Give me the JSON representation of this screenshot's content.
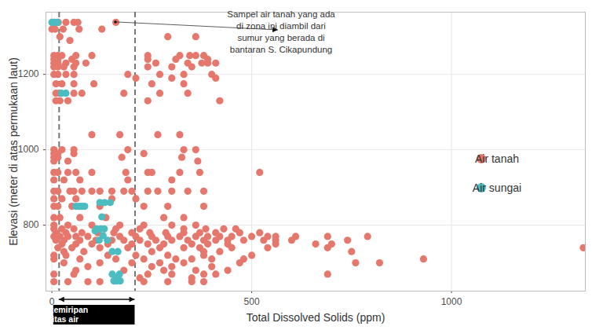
{
  "chart_data": {
    "type": "scatter",
    "x_label": "Total Dissolved Solids (ppm)",
    "y_label": "Elevasi (meter di atas permukaan laut)",
    "xlim": [
      -15,
      1335
    ],
    "ylim": [
      625,
      1365
    ],
    "xticks": [
      0,
      500,
      1000
    ],
    "yticks": [
      800,
      1000,
      1200
    ],
    "grid": true,
    "legend": "right",
    "marker": "circle",
    "series": [
      {
        "name": "Air tanah",
        "color": "#e5776c",
        "values": [
          [
            6,
            1338
          ],
          [
            16,
            1338
          ],
          [
            35,
            1338
          ],
          [
            55,
            1338
          ],
          [
            65,
            1338
          ],
          [
            160,
            1338
          ],
          [
            0,
            1320
          ],
          [
            8,
            1320
          ],
          [
            28,
            1320
          ],
          [
            68,
            1320
          ],
          [
            125,
            1320
          ],
          [
            20,
            1300
          ],
          [
            290,
            1300
          ],
          [
            360,
            1300
          ],
          [
            45,
            1290
          ],
          [
            5,
            1250
          ],
          [
            15,
            1250
          ],
          [
            25,
            1250
          ],
          [
            60,
            1250
          ],
          [
            100,
            1250
          ],
          [
            240,
            1250
          ],
          [
            320,
            1250
          ],
          [
            345,
            1250
          ],
          [
            360,
            1250
          ],
          [
            380,
            1250
          ],
          [
            5,
            1240
          ],
          [
            15,
            1240
          ],
          [
            50,
            1240
          ],
          [
            240,
            1240
          ],
          [
            310,
            1240
          ],
          [
            390,
            1240
          ],
          [
            5,
            1230
          ],
          [
            15,
            1230
          ],
          [
            35,
            1230
          ],
          [
            60,
            1230
          ],
          [
            85,
            1230
          ],
          [
            260,
            1230
          ],
          [
            340,
            1230
          ],
          [
            375,
            1230
          ],
          [
            390,
            1230
          ],
          [
            410,
            1230
          ],
          [
            5,
            1220
          ],
          [
            15,
            1220
          ],
          [
            30,
            1220
          ],
          [
            55,
            1220
          ],
          [
            240,
            1220
          ],
          [
            300,
            1220
          ],
          [
            350,
            1220
          ],
          [
            5,
            1200
          ],
          [
            15,
            1200
          ],
          [
            35,
            1200
          ],
          [
            55,
            1200
          ],
          [
            190,
            1200
          ],
          [
            270,
            1200
          ],
          [
            330,
            1200
          ],
          [
            400,
            1200
          ],
          [
            210,
            1190
          ],
          [
            300,
            1190
          ],
          [
            410,
            1190
          ],
          [
            10,
            1175
          ],
          [
            25,
            1175
          ],
          [
            55,
            1175
          ],
          [
            105,
            1175
          ],
          [
            250,
            1175
          ],
          [
            330,
            1175
          ],
          [
            10,
            1150
          ],
          [
            20,
            1150
          ],
          [
            55,
            1150
          ],
          [
            75,
            1150
          ],
          [
            180,
            1150
          ],
          [
            270,
            1150
          ],
          [
            340,
            1150
          ],
          [
            10,
            1130
          ],
          [
            20,
            1130
          ],
          [
            40,
            1130
          ],
          [
            240,
            1130
          ],
          [
            420,
            1130
          ],
          [
            100,
            1040
          ],
          [
            170,
            1040
          ],
          [
            265,
            1040
          ],
          [
            320,
            1040
          ],
          [
            5,
            1000
          ],
          [
            25,
            1000
          ],
          [
            55,
            1000
          ],
          [
            190,
            1000
          ],
          [
            330,
            1000
          ],
          [
            360,
            1000
          ],
          [
            5,
            990
          ],
          [
            15,
            990
          ],
          [
            55,
            990
          ],
          [
            230,
            990
          ],
          [
            5,
            980
          ],
          [
            15,
            980
          ],
          [
            175,
            980
          ],
          [
            325,
            980
          ],
          [
            5,
            970
          ],
          [
            40,
            970
          ],
          [
            365,
            970
          ],
          [
            5,
            940
          ],
          [
            15,
            940
          ],
          [
            40,
            940
          ],
          [
            60,
            940
          ],
          [
            100,
            940
          ],
          [
            185,
            940
          ],
          [
            240,
            940
          ],
          [
            250,
            940
          ],
          [
            320,
            940
          ],
          [
            370,
            940
          ],
          [
            520,
            940
          ],
          [
            5,
            920
          ],
          [
            30,
            920
          ],
          [
            70,
            920
          ],
          [
            190,
            920
          ],
          [
            300,
            920
          ],
          [
            5,
            890
          ],
          [
            15,
            890
          ],
          [
            45,
            890
          ],
          [
            55,
            890
          ],
          [
            75,
            890
          ],
          [
            100,
            890
          ],
          [
            120,
            890
          ],
          [
            150,
            890
          ],
          [
            180,
            890
          ],
          [
            200,
            890
          ],
          [
            240,
            890
          ],
          [
            265,
            890
          ],
          [
            300,
            890
          ],
          [
            340,
            890
          ],
          [
            380,
            890
          ],
          [
            5,
            870
          ],
          [
            25,
            870
          ],
          [
            60,
            870
          ],
          [
            150,
            870
          ],
          [
            210,
            870
          ],
          [
            5,
            850
          ],
          [
            15,
            850
          ],
          [
            50,
            850
          ],
          [
            120,
            850
          ],
          [
            230,
            850
          ],
          [
            290,
            850
          ],
          [
            380,
            850
          ],
          [
            5,
            820
          ],
          [
            20,
            820
          ],
          [
            70,
            820
          ],
          [
            135,
            820
          ],
          [
            280,
            820
          ],
          [
            330,
            820
          ],
          [
            5,
            800
          ],
          [
            40,
            800
          ],
          [
            100,
            800
          ],
          [
            170,
            800
          ],
          [
            230,
            800
          ],
          [
            300,
            800
          ],
          [
            360,
            800
          ],
          [
            5,
            790
          ],
          [
            25,
            790
          ],
          [
            55,
            790
          ],
          [
            160,
            790
          ],
          [
            220,
            790
          ],
          [
            330,
            790
          ],
          [
            385,
            790
          ],
          [
            430,
            790
          ],
          [
            460,
            790
          ],
          [
            10,
            780
          ],
          [
            35,
            780
          ],
          [
            75,
            780
          ],
          [
            115,
            780
          ],
          [
            155,
            780
          ],
          [
            200,
            780
          ],
          [
            245,
            780
          ],
          [
            285,
            780
          ],
          [
            330,
            780
          ],
          [
            370,
            780
          ],
          [
            410,
            780
          ],
          [
            470,
            780
          ],
          [
            520,
            780
          ],
          [
            5,
            770
          ],
          [
            20,
            770
          ],
          [
            40,
            770
          ],
          [
            60,
            770
          ],
          [
            90,
            770
          ],
          [
            170,
            770
          ],
          [
            210,
            770
          ],
          [
            250,
            770
          ],
          [
            290,
            770
          ],
          [
            320,
            770
          ],
          [
            360,
            770
          ],
          [
            390,
            770
          ],
          [
            420,
            770
          ],
          [
            450,
            770
          ],
          [
            500,
            770
          ],
          [
            540,
            770
          ],
          [
            560,
            770
          ],
          [
            610,
            770
          ],
          [
            690,
            770
          ],
          [
            790,
            770
          ],
          [
            10,
            760
          ],
          [
            30,
            760
          ],
          [
            70,
            760
          ],
          [
            110,
            760
          ],
          [
            150,
            760
          ],
          [
            180,
            760
          ],
          [
            220,
            760
          ],
          [
            260,
            760
          ],
          [
            300,
            760
          ],
          [
            340,
            760
          ],
          [
            380,
            760
          ],
          [
            410,
            760
          ],
          [
            440,
            760
          ],
          [
            480,
            760
          ],
          [
            530,
            760
          ],
          [
            560,
            760
          ],
          [
            600,
            760
          ],
          [
            740,
            760
          ],
          [
            25,
            750
          ],
          [
            60,
            750
          ],
          [
            100,
            750
          ],
          [
            140,
            750
          ],
          [
            200,
            750
          ],
          [
            240,
            750
          ],
          [
            280,
            750
          ],
          [
            350,
            750
          ],
          [
            390,
            750
          ],
          [
            440,
            750
          ],
          [
            560,
            750
          ],
          [
            660,
            750
          ],
          [
            700,
            750
          ],
          [
            15,
            740
          ],
          [
            50,
            740
          ],
          [
            120,
            740
          ],
          [
            190,
            740
          ],
          [
            270,
            740
          ],
          [
            330,
            740
          ],
          [
            370,
            740
          ],
          [
            450,
            740
          ],
          [
            540,
            740
          ],
          [
            690,
            740
          ],
          [
            1330,
            740
          ],
          [
            30,
            730
          ],
          [
            80,
            730
          ],
          [
            250,
            730
          ],
          [
            380,
            730
          ],
          [
            420,
            730
          ],
          [
            750,
            730
          ],
          [
            5,
            720
          ],
          [
            35,
            720
          ],
          [
            140,
            720
          ],
          [
            210,
            720
          ],
          [
            290,
            720
          ],
          [
            380,
            720
          ],
          [
            500,
            720
          ],
          [
            5,
            710
          ],
          [
            70,
            710
          ],
          [
            160,
            710
          ],
          [
            230,
            710
          ],
          [
            310,
            710
          ],
          [
            350,
            710
          ],
          [
            400,
            710
          ],
          [
            480,
            710
          ],
          [
            930,
            710
          ],
          [
            30,
            700
          ],
          [
            120,
            700
          ],
          [
            200,
            700
          ],
          [
            270,
            700
          ],
          [
            330,
            700
          ],
          [
            470,
            700
          ],
          [
            760,
            700
          ],
          [
            820,
            700
          ],
          [
            90,
            690
          ],
          [
            250,
            690
          ],
          [
            300,
            690
          ],
          [
            400,
            690
          ],
          [
            60,
            680
          ],
          [
            180,
            680
          ],
          [
            280,
            680
          ],
          [
            360,
            680
          ],
          [
            440,
            680
          ],
          [
            5,
            670
          ],
          [
            55,
            670
          ],
          [
            240,
            670
          ],
          [
            300,
            670
          ],
          [
            380,
            670
          ],
          [
            410,
            670
          ],
          [
            690,
            670
          ],
          [
            220,
            660
          ],
          [
            350,
            660
          ],
          [
            5,
            650
          ],
          [
            40,
            650
          ],
          [
            90,
            650
          ],
          [
            120,
            650
          ],
          [
            230,
            650
          ],
          [
            290,
            650
          ],
          [
            350,
            650
          ],
          [
            380,
            650
          ]
        ]
      },
      {
        "name": "Air sungai",
        "color": "#4bbcc0",
        "values": [
          [
            0,
            1338
          ],
          [
            6,
            1338
          ],
          [
            14,
            1338
          ],
          [
            24,
            1150
          ],
          [
            35,
            1150
          ],
          [
            60,
            850
          ],
          [
            68,
            850
          ],
          [
            75,
            850
          ],
          [
            82,
            850
          ],
          [
            120,
            860
          ],
          [
            132,
            860
          ],
          [
            146,
            860
          ],
          [
            125,
            822
          ],
          [
            112,
            790
          ],
          [
            122,
            790
          ],
          [
            131,
            790
          ],
          [
            108,
            785
          ],
          [
            128,
            772
          ],
          [
            118,
            760
          ],
          [
            139,
            760
          ],
          [
            151,
            730
          ],
          [
            165,
            730
          ],
          [
            151,
            670
          ],
          [
            169,
            670
          ],
          [
            160,
            660
          ],
          [
            155,
            652
          ],
          [
            162,
            652
          ],
          [
            171,
            652
          ]
        ]
      }
    ],
    "annotations": [
      {
        "type": "vline",
        "x": 18,
        "line_style": "dashed"
      },
      {
        "type": "vline",
        "x": 208,
        "line_style": "dashed"
      },
      {
        "type": "bracket",
        "x": [
          18,
          208
        ],
        "text": [
          "Bukti kemiripan",
          "kualitas air"
        ]
      },
      {
        "type": "callout",
        "x": 160,
        "y": 1338,
        "text": [
          "Sampel air tanah yang ada",
          "di zona ini diambil dari",
          "sumur yang berada di",
          "bantaran S. Cikapundung"
        ]
      }
    ]
  }
}
